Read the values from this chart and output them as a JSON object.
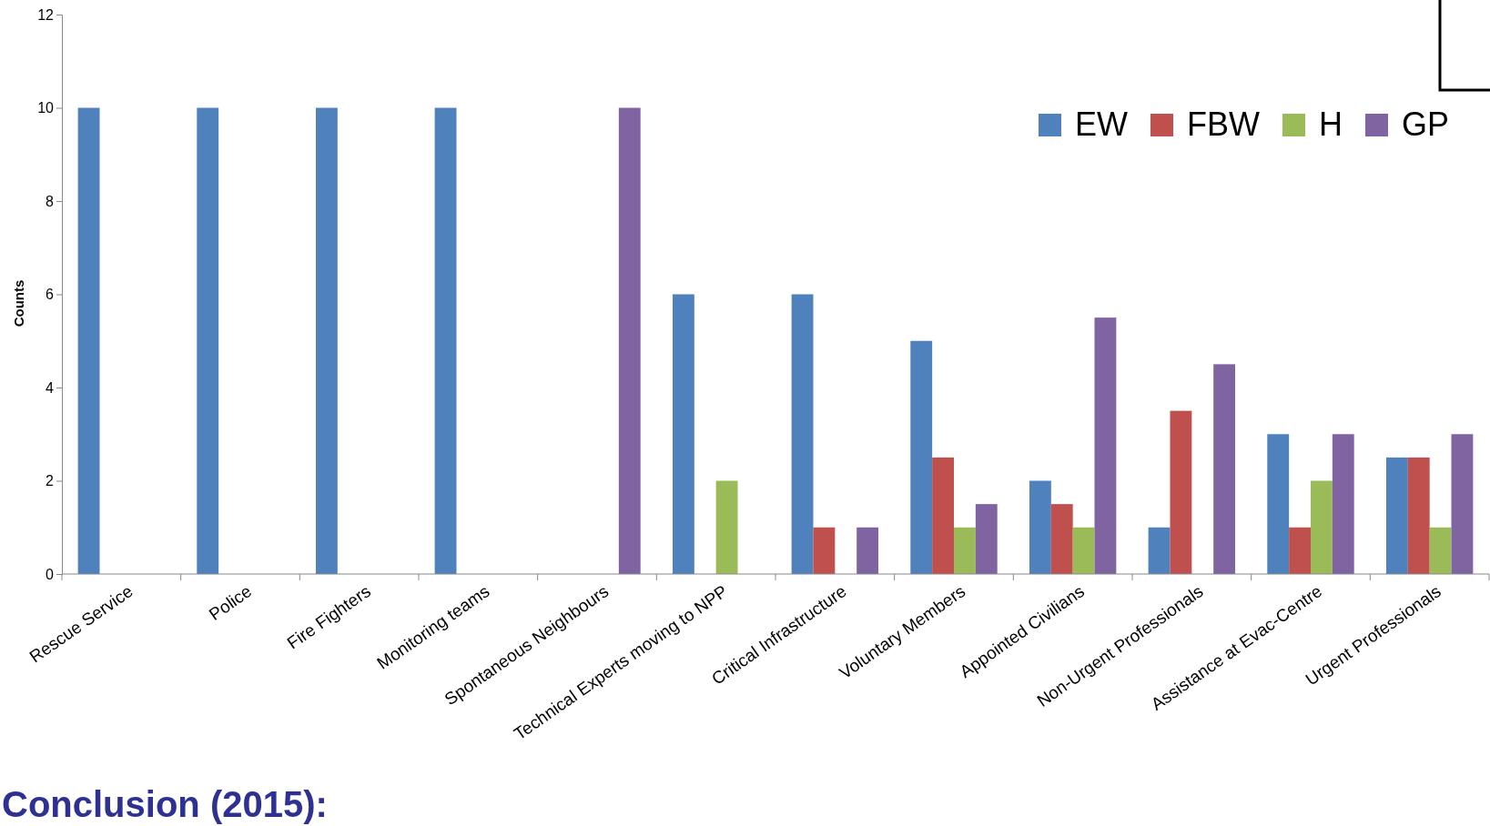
{
  "chart_data": {
    "type": "bar",
    "ylabel": "Counts",
    "categories": [
      "Rescue Service",
      "Police",
      "Fire Fighters",
      "Monitoring teams",
      "Spontaneous Neighbours",
      "Technical Experts moving to NPP",
      "Critical Infrastructure",
      "Voluntary Members",
      "Appointed Civilians",
      "Non-Urgent Professionals",
      "Assistance at Evac-Centre",
      "Urgent Professionals"
    ],
    "series": [
      {
        "name": "EW",
        "color": "#4f81bd",
        "values": [
          10,
          10,
          10,
          10,
          0,
          6,
          6,
          5,
          2,
          1,
          3,
          2.5
        ]
      },
      {
        "name": "FBW",
        "color": "#c0504d",
        "values": [
          0,
          0,
          0,
          0,
          0,
          0,
          1,
          2.5,
          1.5,
          3.5,
          1,
          2.5
        ]
      },
      {
        "name": "H",
        "color": "#9bbb59",
        "values": [
          0,
          0,
          0,
          0,
          0,
          2,
          0,
          1,
          1,
          0,
          2,
          1
        ]
      },
      {
        "name": "GP",
        "color": "#8064a2",
        "values": [
          0,
          0,
          0,
          0,
          10,
          0,
          1,
          1.5,
          5.5,
          4.5,
          3,
          3
        ]
      }
    ],
    "ylim": [
      0,
      12
    ],
    "yticks": [
      0,
      2,
      4,
      6,
      8,
      10,
      12
    ],
    "grid": false,
    "legend": "top right",
    "annotations": [
      "Conclusion (2015):"
    ]
  }
}
